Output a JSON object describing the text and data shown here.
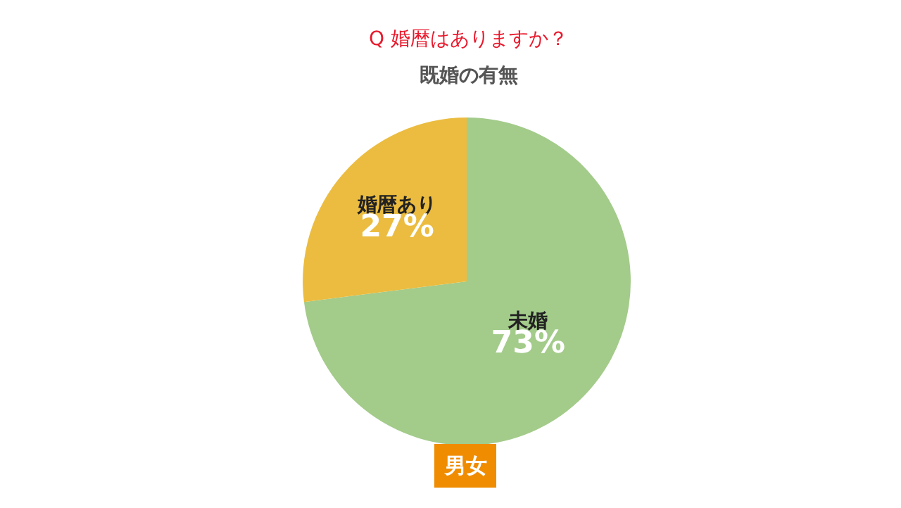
{
  "chart_data": {
    "type": "pie",
    "title": "Q 婚暦はありますか？",
    "subtitle": "既婚の有無",
    "categories": [
      "未婚",
      "婚暦あり"
    ],
    "values": [
      73,
      27
    ],
    "value_labels": [
      "73%",
      "27%"
    ],
    "colors": [
      "#a3cb8a",
      "#ebbc3f"
    ],
    "legend": false,
    "annotations": [
      "男女"
    ]
  }
}
